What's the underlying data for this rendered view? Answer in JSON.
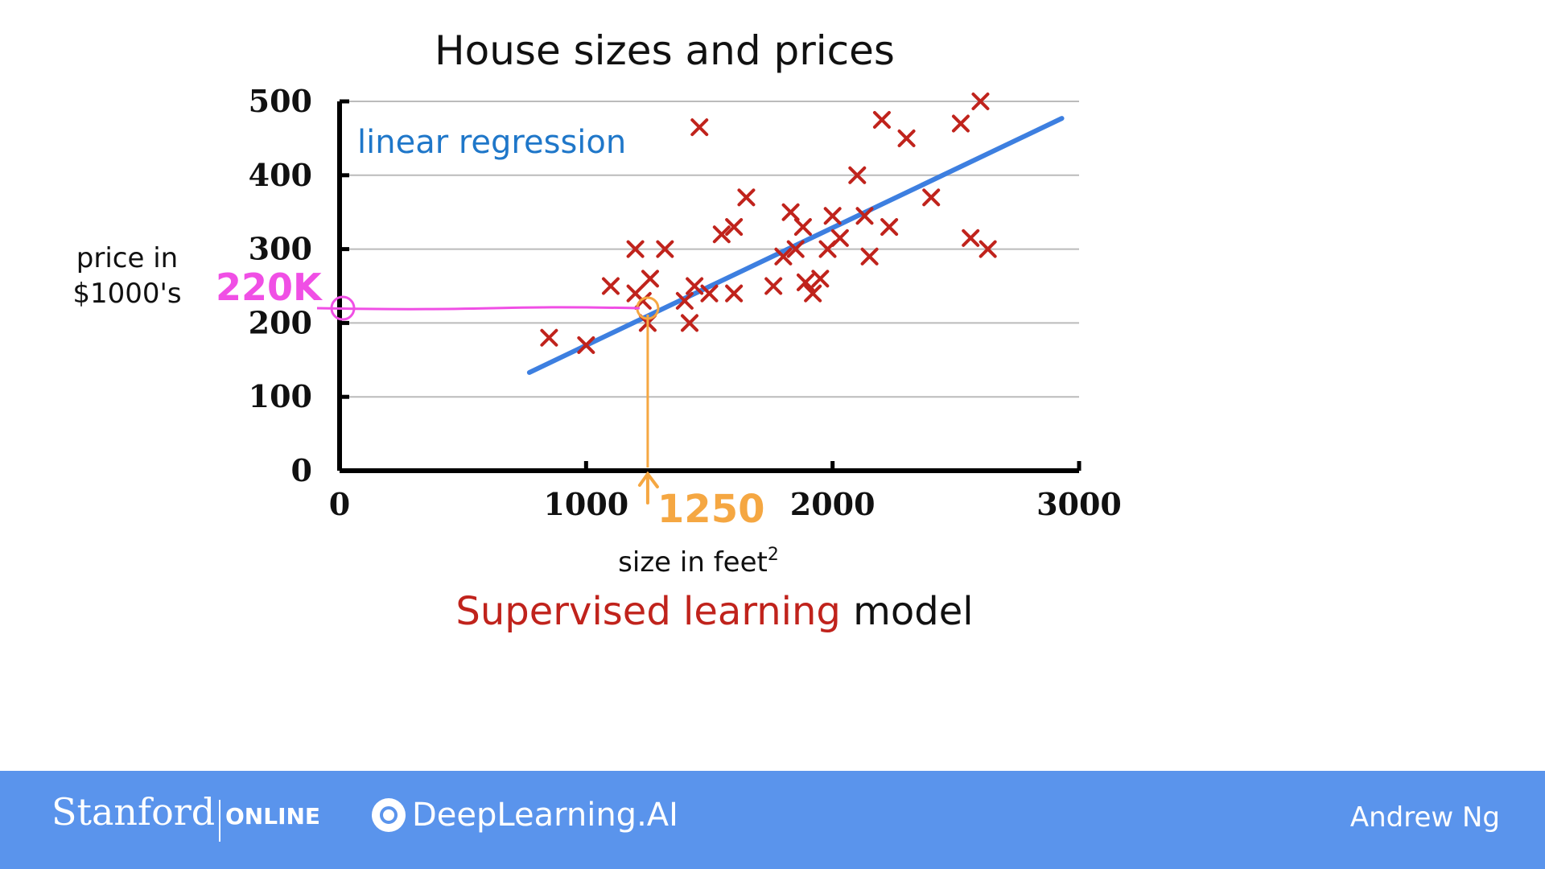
{
  "chart_data": {
    "type": "scatter",
    "title": "House sizes and prices",
    "xlabel": "size in feet",
    "xlabel_superscript": "2",
    "ylabel_lines": [
      "price in",
      "$1000's"
    ],
    "xlim": [
      0,
      3000
    ],
    "ylim": [
      0,
      500
    ],
    "x_ticks": [
      0,
      1000,
      2000,
      3000
    ],
    "y_ticks": [
      0,
      100,
      200,
      300,
      400,
      500
    ],
    "grid": "horizontal",
    "points": [
      [
        850,
        180
      ],
      [
        1000,
        170
      ],
      [
        1100,
        250
      ],
      [
        1200,
        300
      ],
      [
        1200,
        240
      ],
      [
        1230,
        230
      ],
      [
        1250,
        200
      ],
      [
        1260,
        260
      ],
      [
        1320,
        300
      ],
      [
        1400,
        230
      ],
      [
        1420,
        200
      ],
      [
        1440,
        250
      ],
      [
        1460,
        465
      ],
      [
        1500,
        240
      ],
      [
        1550,
        320
      ],
      [
        1600,
        330
      ],
      [
        1600,
        240
      ],
      [
        1650,
        370
      ],
      [
        1760,
        250
      ],
      [
        1800,
        290
      ],
      [
        1830,
        350
      ],
      [
        1850,
        300
      ],
      [
        1880,
        330
      ],
      [
        1890,
        255
      ],
      [
        1920,
        240
      ],
      [
        1950,
        260
      ],
      [
        1980,
        300
      ],
      [
        2000,
        345
      ],
      [
        2030,
        315
      ],
      [
        2100,
        400
      ],
      [
        2130,
        345
      ],
      [
        2150,
        290
      ],
      [
        2200,
        475
      ],
      [
        2230,
        330
      ],
      [
        2300,
        450
      ],
      [
        2400,
        370
      ],
      [
        2520,
        470
      ],
      [
        2560,
        315
      ],
      [
        2600,
        500
      ],
      [
        2630,
        300
      ]
    ],
    "regression_line": {
      "label": "linear regression",
      "x": [
        770,
        2930
      ],
      "y": [
        133,
        477
      ]
    },
    "annotations": {
      "query_x": 1250,
      "query_x_label": "1250",
      "predicted_y": 220,
      "predicted_y_label": "220K"
    },
    "colors": {
      "points": "#c0231c",
      "line": "#3d7fe0",
      "series_label": "#1f77c9",
      "grid": "#bbbbbb",
      "axes": "#000000",
      "x_annotation": "#f5a742",
      "y_annotation": "#f04fe5"
    }
  },
  "caption": {
    "highlight": "Supervised learning",
    "rest": "model",
    "highlight_color": "#c0231c"
  },
  "footer": {
    "background": "#5a94ec",
    "stanford": "Stanford",
    "online": "ONLINE",
    "deeplearning": "DeepLearning.AI",
    "author": "Andrew Ng"
  }
}
